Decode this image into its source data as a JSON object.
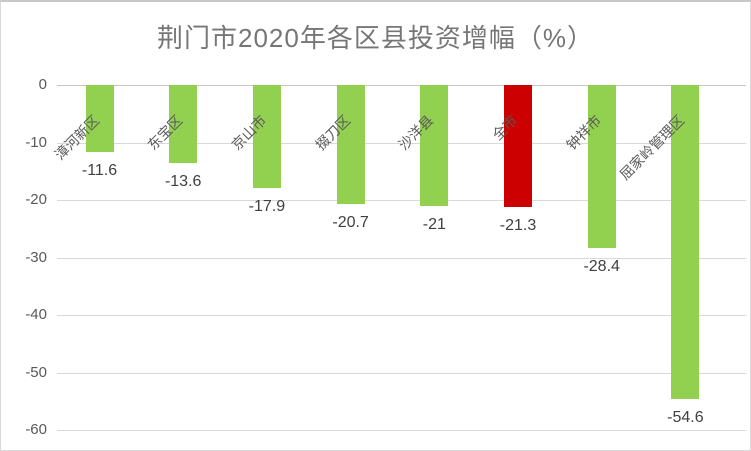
{
  "chart": {
    "title": "荆门市2020年各区县投资增幅（%）"
  },
  "chart_data": {
    "type": "bar",
    "title": "荆门市2020年各区县投资增幅（%）",
    "categories": [
      "漳河新区",
      "东宝区",
      "京山市",
      "掇刀区",
      "沙洋县",
      "全市",
      "钟祥市",
      "屈家岭管理区"
    ],
    "values": [
      -11.6,
      -13.6,
      -17.9,
      -20.7,
      -21,
      -21.3,
      -28.4,
      -54.6
    ],
    "data_labels": [
      "-11.6",
      "-13.6",
      "-17.9",
      "-20.7",
      "-21",
      "-21.3",
      "-28.4",
      "-54.6"
    ],
    "bar_colors": [
      "#92D050",
      "#92D050",
      "#92D050",
      "#92D050",
      "#92D050",
      "#CC0000",
      "#92D050",
      "#92D050"
    ],
    "highlight_category": "全市",
    "xlabel": "",
    "ylabel": "",
    "ylim": [
      -60,
      0
    ],
    "yticks": [
      0,
      -10,
      -20,
      -30,
      -40,
      -50,
      -60
    ],
    "grid": true,
    "legend": false,
    "category_label_rotation_deg": 45,
    "colors": {
      "bar_green": "#92D050",
      "bar_red": "#CC0000",
      "gridline": "#D9D9D9",
      "axis_text": "#595959",
      "data_label_text": "#404040",
      "category_text": "#595959",
      "title_text": "#767676"
    }
  }
}
